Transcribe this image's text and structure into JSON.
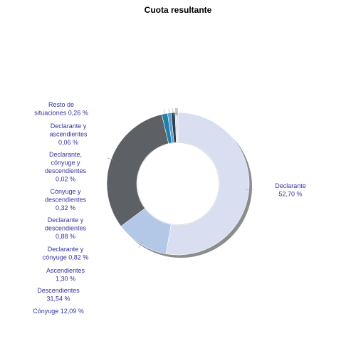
{
  "chart_data": {
    "type": "pie",
    "title": "Cuota resultante",
    "slices": [
      {
        "label": "Declarante",
        "display": "52,70 %",
        "value": 52.7,
        "color": "#d9dff0"
      },
      {
        "label": "Cónyuge",
        "display": "12,09 %",
        "value": 12.09,
        "color": "#b3c7e6"
      },
      {
        "label": "Descendientes",
        "display": "31,54 %",
        "value": 31.54,
        "color": "#5d6166"
      },
      {
        "label": "Ascendientes",
        "display": "1,30 %",
        "value": 1.3,
        "color": "#1f7fa6"
      },
      {
        "label": "Declarante y cónyuge",
        "display": "0,82 %",
        "value": 0.82,
        "color": "#5c9ed1"
      },
      {
        "label": "Declarante y descendientes",
        "display": "0,88 %",
        "value": 0.88,
        "color": "#28404f"
      },
      {
        "label": "Cónyuge y descendientes",
        "display": "0,32 %",
        "value": 0.32,
        "color": "#c8cfe0"
      },
      {
        "label": "Declarante, cónyuge y descendientes",
        "display": "0,02 %",
        "value": 0.02,
        "color": "#7f8aa0"
      },
      {
        "label": "Declarante y ascendientes",
        "display": "0,06 %",
        "value": 0.06,
        "color": "#1a5f8a"
      },
      {
        "label": "Resto de situaciones",
        "display": "0,26 %",
        "value": 0.26,
        "color": "#bcd6ee"
      }
    ]
  }
}
